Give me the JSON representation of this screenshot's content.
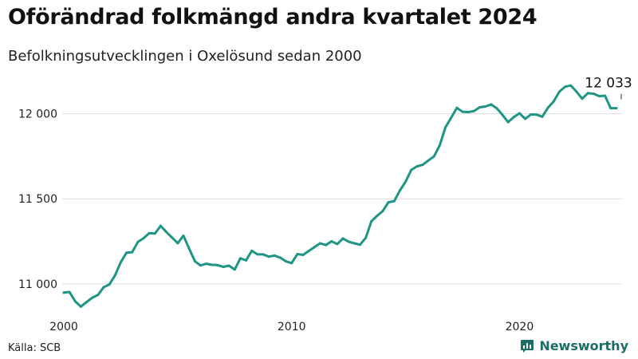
{
  "title": "Oförändrad folkmängd andra kvartalet 2024",
  "subtitle": "Befolkningsutvecklingen i Oxelösund sedan 2000",
  "source": "Källa: SCB",
  "brand": {
    "name": "Newsworthy",
    "icon": "bar-chart-logo-icon",
    "color": "#1a6e66"
  },
  "colors": {
    "line": "#1e9585",
    "grid": "#dddddd"
  },
  "chart_data": {
    "type": "line",
    "title": "Oförändrad folkmängd andra kvartalet 2024",
    "subtitle": "Befolkningsutvecklingen i Oxelösund sedan 2000",
    "xlabel": "",
    "ylabel": "",
    "xlim": [
      2000,
      2024.5
    ],
    "ylim": [
      10830,
      12200
    ],
    "grid": "horizontal",
    "x_ticks": [
      {
        "value": 2000,
        "label": "2000"
      },
      {
        "value": 2010,
        "label": "2010"
      },
      {
        "value": 2020,
        "label": "2020"
      }
    ],
    "y_ticks": [
      {
        "value": 11000,
        "label": "11 000"
      },
      {
        "value": 11500,
        "label": "11 500"
      },
      {
        "value": 12000,
        "label": "12 000"
      }
    ],
    "annotation": {
      "x": 2024.5,
      "value": 12033,
      "label": "12 033"
    },
    "series": [
      {
        "x": [
          2000.0,
          2000.25,
          2000.5,
          2000.75,
          2001.0,
          2001.25,
          2001.5,
          2001.75,
          2002.0,
          2002.25,
          2002.5,
          2002.75,
          2003.0,
          2003.25,
          2003.5,
          2003.75,
          2004.0,
          2004.25,
          2004.5,
          2004.75,
          2005.0,
          2005.25,
          2005.5,
          2005.75,
          2006.0,
          2006.25,
          2006.5,
          2006.75,
          2007.0,
          2007.25,
          2007.5,
          2007.75,
          2008.0,
          2008.25,
          2008.5,
          2008.75,
          2009.0,
          2009.25,
          2009.5,
          2009.75,
          2010.0,
          2010.25,
          2010.5,
          2010.75,
          2011.0,
          2011.25,
          2011.5,
          2011.75,
          2012.0,
          2012.25,
          2012.5,
          2012.75,
          2013.0,
          2013.25,
          2013.5,
          2013.75,
          2014.0,
          2014.25,
          2014.5,
          2014.75,
          2015.0,
          2015.25,
          2015.5,
          2015.75,
          2016.0,
          2016.25,
          2016.5,
          2016.75,
          2017.0,
          2017.25,
          2017.5,
          2017.75,
          2018.0,
          2018.25,
          2018.5,
          2018.75,
          2019.0,
          2019.25,
          2019.5,
          2019.75,
          2020.0,
          2020.25,
          2020.5,
          2020.75,
          2021.0,
          2021.25,
          2021.5,
          2021.75,
          2022.0,
          2022.25,
          2022.5,
          2022.75,
          2023.0,
          2023.25,
          2023.5,
          2023.75,
          2024.0,
          2024.25
        ],
        "values": [
          10948,
          10952,
          10897,
          10866,
          10893,
          10918,
          10935,
          10980,
          10996,
          11050,
          11127,
          11183,
          11186,
          11246,
          11268,
          11298,
          11296,
          11341,
          11305,
          11272,
          11239,
          11283,
          11208,
          11133,
          11108,
          11118,
          11112,
          11110,
          11100,
          11107,
          11084,
          11150,
          11138,
          11194,
          11173,
          11173,
          11160,
          11166,
          11154,
          11132,
          11122,
          11175,
          11170,
          11193,
          11216,
          11238,
          11228,
          11250,
          11234,
          11267,
          11248,
          11238,
          11230,
          11270,
          11368,
          11400,
          11428,
          11480,
          11486,
          11549,
          11601,
          11670,
          11691,
          11700,
          11725,
          11750,
          11815,
          11921,
          11977,
          12035,
          12012,
          12010,
          12016,
          12038,
          12043,
          12055,
          12032,
          11994,
          11951,
          11981,
          12003,
          11970,
          11996,
          11995,
          11983,
          12036,
          12073,
          12130,
          12159,
          12166,
          12130,
          12089,
          12121,
          12118,
          12104,
          12106,
          12033,
          12033
        ]
      }
    ]
  }
}
